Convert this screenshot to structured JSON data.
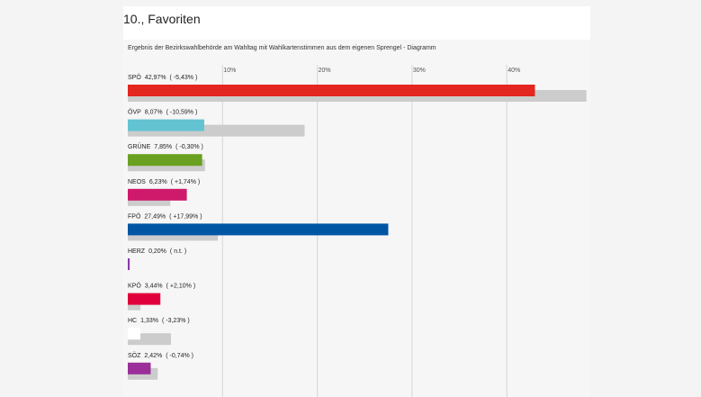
{
  "page": {
    "title": "10., Favoriten"
  },
  "chart_data": {
    "type": "bar",
    "orientation": "horizontal",
    "title": "Ergebnis der Bezirkswahlbehörde am Wahltag mit Wahlkartenstimmen aus dem eigenen Sprengel - Diagramm",
    "xlabel": "",
    "ylabel": "",
    "xlim": [
      0,
      48.5
    ],
    "ticks": [
      {
        "value": 10,
        "label": "10%"
      },
      {
        "value": 20,
        "label": "20%"
      },
      {
        "value": 30,
        "label": "30%"
      },
      {
        "value": 40,
        "label": "40%"
      }
    ],
    "grid": true,
    "legend": "none",
    "reference_color": "#cccccc",
    "categories": [
      "SPÖ",
      "ÖVP",
      "GRÜNE",
      "NEOS",
      "FPÖ",
      "HERZ",
      "KPÖ",
      "HC",
      "SÖZ"
    ],
    "series": [
      {
        "values": [
          42.97,
          8.07,
          7.85,
          6.23,
          27.49,
          0.2,
          3.44,
          1.33,
          2.42
        ],
        "labels": [
          "42,97%",
          "8,07%",
          "7,85%",
          "6,23%",
          "27,49%",
          "0,20%",
          "3,44%",
          "1,33%",
          "2,42%"
        ],
        "changes": [
          "( -5,43% )",
          "( -10,59% )",
          "( -0,30% )",
          "( +1,74% )",
          "( +17,99% )",
          "( n.t. )",
          "( +2,10% )",
          "( -3,23% )",
          "( -0,74% )"
        ],
        "colors": [
          "#e3261f",
          "#63c3d1",
          "#6aa121",
          "#cf1a6b",
          "#0056a4",
          "#8b3aa8",
          "#e0003c",
          "#ffffff",
          "#9a2f9a"
        ]
      },
      {
        "values": [
          48.4,
          18.66,
          8.15,
          4.49,
          9.5,
          0,
          1.34,
          4.56,
          3.16
        ]
      }
    ]
  }
}
